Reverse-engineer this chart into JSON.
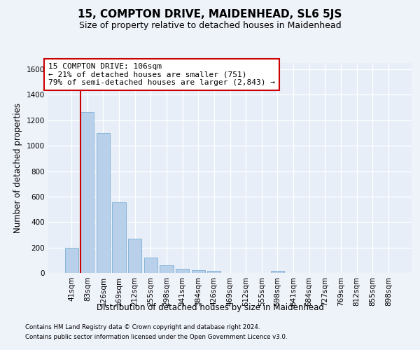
{
  "title": "15, COMPTON DRIVE, MAIDENHEAD, SL6 5JS",
  "subtitle": "Size of property relative to detached houses in Maidenhead",
  "xlabel": "Distribution of detached houses by size in Maidenhead",
  "ylabel": "Number of detached properties",
  "footer_line1": "Contains HM Land Registry data © Crown copyright and database right 2024.",
  "footer_line2": "Contains public sector information licensed under the Open Government Licence v3.0.",
  "bar_labels": [
    "41sqm",
    "83sqm",
    "126sqm",
    "169sqm",
    "212sqm",
    "255sqm",
    "298sqm",
    "341sqm",
    "384sqm",
    "426sqm",
    "469sqm",
    "512sqm",
    "555sqm",
    "598sqm",
    "641sqm",
    "684sqm",
    "727sqm",
    "769sqm",
    "812sqm",
    "855sqm",
    "898sqm"
  ],
  "bar_values": [
    200,
    1265,
    1100,
    558,
    270,
    120,
    58,
    35,
    22,
    15,
    0,
    0,
    0,
    15,
    0,
    0,
    0,
    0,
    0,
    0,
    0
  ],
  "bar_color": "#b8d0ea",
  "bar_edgecolor": "#7aafd4",
  "ylim": [
    0,
    1650
  ],
  "yticks": [
    0,
    200,
    400,
    600,
    800,
    1000,
    1200,
    1400,
    1600
  ],
  "vline_x_index": 1,
  "vline_color": "#cc0000",
  "annotation_line1": "15 COMPTON DRIVE: 106sqm",
  "annotation_line2": "← 21% of detached houses are smaller (751)",
  "annotation_line3": "79% of semi-detached houses are larger (2,843) →",
  "bg_color": "#eef2f9",
  "plot_bg_color": "#e8eef8",
  "grid_color": "#ffffff",
  "title_fontsize": 11,
  "subtitle_fontsize": 9,
  "tick_fontsize": 7.5,
  "ylabel_fontsize": 8.5,
  "xlabel_fontsize": 8.5,
  "annot_fontsize": 8,
  "footer_fontsize": 6.2
}
